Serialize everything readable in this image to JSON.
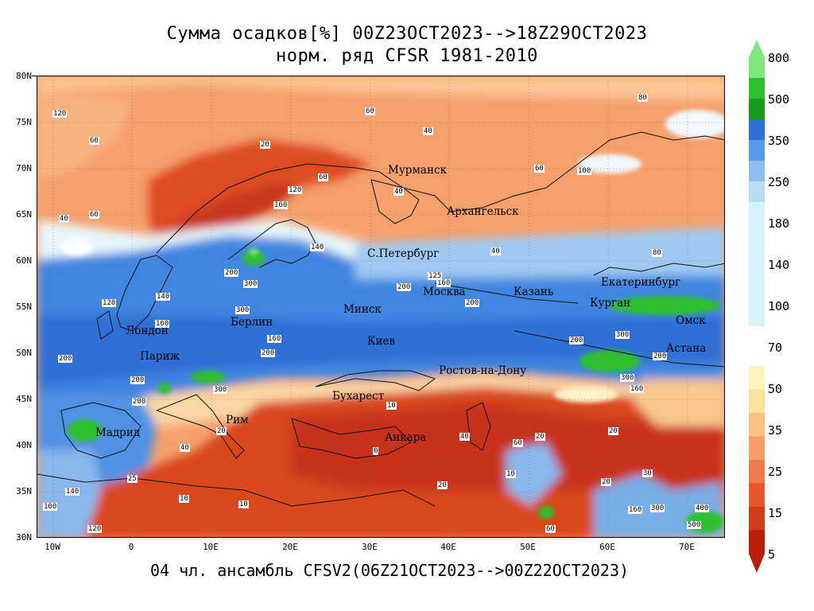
{
  "title": {
    "line1": "Сумма осадков[%] 00Z23OCT2023-->18Z29OCT2023",
    "line2": "норм. ряд CFSR 1981-2010"
  },
  "footer": "04 чл. ансамбль CFSV2(06Z21OCT2023-->00Z22OCT2023)",
  "axes": {
    "y_labels": [
      "80N",
      "75N",
      "70N",
      "65N",
      "60N",
      "55N",
      "50N",
      "45N",
      "40N",
      "35N",
      "30N"
    ],
    "x_labels": [
      "10W",
      "0",
      "10E",
      "20E",
      "30E",
      "40E",
      "50E",
      "60E",
      "70E"
    ]
  },
  "colorbar": {
    "labels": [
      "800",
      "500",
      "350",
      "250",
      "180",
      "140",
      "100",
      "70",
      "50",
      "35",
      "25",
      "15",
      "5"
    ],
    "colors": [
      "#7ee87e",
      "#2ebf2e",
      "#1a9a1a",
      "#2f6fd6",
      "#5a9aea",
      "#8cbcf0",
      "#b8dcf6",
      "#d6f4fb",
      "#fff5b8",
      "#fde0a0",
      "#fbbf82",
      "#f79e68",
      "#ef7a4e",
      "#e4572e",
      "#d03b1a",
      "#b81e0a"
    ]
  },
  "cities": [
    "Мурманск",
    "Архангельск",
    "С.Петербург",
    "Москва",
    "Казань",
    "Екатеринбург",
    "Курган",
    "Омск",
    "Астана",
    "Минск",
    "Киев",
    "Ростов-на-Дону",
    "Бухарест",
    "Анкара",
    "Берлин",
    "Лондон",
    "Париж",
    "Рим",
    "Мадрид"
  ],
  "contour_labels": [
    "120",
    "60",
    "40",
    "20",
    "60",
    "40",
    "60",
    "80",
    "100",
    "80",
    "40",
    "60",
    "40",
    "60",
    "120",
    "160",
    "140",
    "200",
    "300",
    "300",
    "200",
    "160",
    "200",
    "125",
    "160",
    "200",
    "200",
    "120",
    "140",
    "160",
    "200",
    "200",
    "300",
    "200",
    "300",
    "200",
    "300",
    "160",
    "10",
    "40",
    "20",
    "0",
    "20",
    "40",
    "60",
    "20",
    "10",
    "10",
    "20",
    "20",
    "160",
    "300",
    "400",
    "500",
    "100",
    "140",
    "10",
    "25",
    "60",
    "120",
    "30"
  ]
}
